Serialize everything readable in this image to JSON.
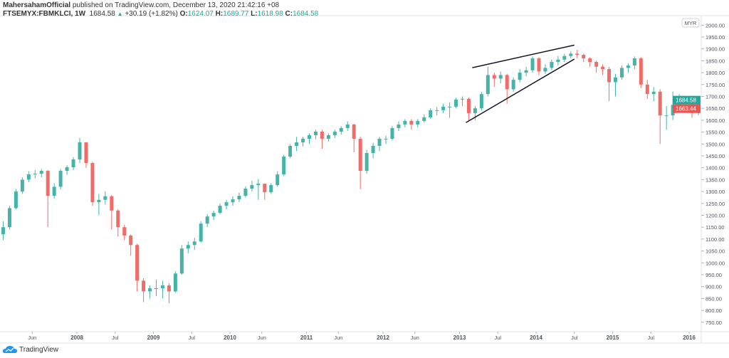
{
  "header": {
    "author": "MahersahamOfficial",
    "published_text": "published on TradingView.com, December 13, 2020 21:42:16 +08",
    "symbol": "FTSEMYX:FBMKLCI, 1W",
    "last": "1684.58",
    "change_icon": "triangle-up-icon",
    "change": "+30.19 (+1.82%)",
    "o_label": "O:",
    "o": "1624.07",
    "h_label": "H:",
    "h": "1689.77",
    "l_label": "L:",
    "l": "1618.98",
    "c_label": "C:",
    "c": "1684.58"
  },
  "footer": {
    "brand": "TradingView"
  },
  "colors": {
    "up": "#26a69a",
    "down": "#ef5350",
    "trendline": "#131722",
    "grid": "#e8eaf0"
  },
  "chart_data": {
    "type": "candlestick",
    "interval_shown": "1W",
    "currency": "MYR",
    "grid": false,
    "ylim": [
      725,
      2010
    ],
    "xlim": [
      "2007-01",
      "2016-03"
    ],
    "y_ticks": [
      "2000.00",
      "1950.00",
      "1900.00",
      "1850.00",
      "1800.00",
      "1750.00",
      "1700.00",
      "1650.00",
      "1600.00",
      "1550.00",
      "1500.00",
      "1450.00",
      "1400.00",
      "1350.00",
      "1300.00",
      "1250.00",
      "1200.00",
      "1150.00",
      "1100.00",
      "1050.00",
      "1000.00",
      "950.00",
      "900.00",
      "850.00",
      "800.00",
      "750.00"
    ],
    "x_ticks": [
      {
        "label": "Jun",
        "date": "2007-06"
      },
      {
        "label": "2008",
        "date": "2008-01"
      },
      {
        "label": "Jul",
        "date": "2008-07"
      },
      {
        "label": "2009",
        "date": "2009-01"
      },
      {
        "label": "Jul",
        "date": "2009-07"
      },
      {
        "label": "2010",
        "date": "2010-01"
      },
      {
        "label": "Jun",
        "date": "2010-06"
      },
      {
        "label": "2011",
        "date": "2011-01"
      },
      {
        "label": "Jun",
        "date": "2011-06"
      },
      {
        "label": "2012",
        "date": "2012-01"
      },
      {
        "label": "Jun",
        "date": "2012-06"
      },
      {
        "label": "2013",
        "date": "2013-01"
      },
      {
        "label": "Jul",
        "date": "2013-07"
      },
      {
        "label": "2014",
        "date": "2014-01"
      },
      {
        "label": "Jul",
        "date": "2014-07"
      },
      {
        "label": "2015",
        "date": "2015-01"
      },
      {
        "label": "Jul",
        "date": "2015-07"
      },
      {
        "label": "2016",
        "date": "2016-01"
      }
    ],
    "price_labels": [
      {
        "value": 1684.58,
        "text": "1684.58",
        "color": "#26a69a"
      },
      {
        "value": 1663.44,
        "text": "1663.44",
        "color": "#ef5350"
      }
    ],
    "currency_badge": "MYR",
    "approx_monthly": {
      "start": "2007-01",
      "first_open": 1120,
      "close": [
        1150,
        1230,
        1300,
        1350,
        1372,
        1375,
        1387,
        1282,
        1320,
        1387,
        1402,
        1435,
        1507,
        1420,
        1255,
        1265,
        1280,
        1220,
        1150,
        1115,
        1075,
        925,
        880,
        893,
        893,
        905,
        880,
        955,
        1060,
        1075,
        1090,
        1165,
        1195,
        1210,
        1240,
        1255,
        1267,
        1282,
        1312,
        1327,
        1333,
        1297,
        1327,
        1372,
        1447,
        1492,
        1507,
        1522,
        1537,
        1552,
        1522,
        1537,
        1552,
        1567,
        1582,
        1522,
        1387,
        1462,
        1492,
        1522,
        1522,
        1567,
        1582,
        1597,
        1582,
        1597,
        1612,
        1642,
        1642,
        1657,
        1657,
        1687,
        1690,
        1630,
        1650,
        1710,
        1790,
        1775,
        1790,
        1730,
        1770,
        1800,
        1810,
        1860,
        1805,
        1820,
        1845,
        1855,
        1870,
        1880,
        1875,
        1860,
        1845,
        1825,
        1815,
        1760,
        1780,
        1820,
        1830,
        1860,
        1750,
        1710,
        1720,
        1620,
        1620,
        1665,
        1670,
        1690,
        1630,
        1685
      ],
      "high": [
        1175,
        1240,
        1310,
        1360,
        1385,
        1390,
        1395,
        1390,
        1335,
        1395,
        1410,
        1445,
        1525,
        1505,
        1425,
        1290,
        1300,
        1285,
        1225,
        1160,
        1120,
        1080,
        935,
        905,
        930,
        925,
        915,
        965,
        1075,
        1090,
        1105,
        1175,
        1205,
        1220,
        1250,
        1265,
        1280,
        1295,
        1322,
        1345,
        1352,
        1320,
        1335,
        1385,
        1455,
        1500,
        1530,
        1530,
        1545,
        1560,
        1560,
        1545,
        1560,
        1575,
        1595,
        1585,
        1530,
        1475,
        1505,
        1530,
        1535,
        1575,
        1595,
        1605,
        1605,
        1605,
        1625,
        1650,
        1655,
        1670,
        1675,
        1695,
        1700,
        1695,
        1660,
        1720,
        1825,
        1800,
        1805,
        1795,
        1780,
        1815,
        1825,
        1868,
        1865,
        1835,
        1855,
        1870,
        1880,
        1890,
        1896,
        1880,
        1865,
        1850,
        1835,
        1825,
        1795,
        1830,
        1840,
        1868,
        1865,
        1770,
        1740,
        1730,
        1660,
        1720,
        1710,
        1700,
        1700,
        1690
      ],
      "low": [
        1095,
        1140,
        1225,
        1290,
        1340,
        1355,
        1360,
        1150,
        1270,
        1310,
        1370,
        1390,
        1420,
        1400,
        1240,
        1200,
        1245,
        1140,
        1110,
        1095,
        1030,
        880,
        835,
        850,
        860,
        850,
        830,
        875,
        950,
        1040,
        1055,
        1085,
        1150,
        1180,
        1205,
        1225,
        1240,
        1255,
        1275,
        1300,
        1265,
        1265,
        1290,
        1320,
        1365,
        1440,
        1470,
        1490,
        1500,
        1520,
        1480,
        1510,
        1525,
        1540,
        1555,
        1465,
        1310,
        1375,
        1440,
        1470,
        1500,
        1515,
        1555,
        1570,
        1560,
        1570,
        1590,
        1605,
        1620,
        1630,
        1610,
        1650,
        1660,
        1600,
        1600,
        1640,
        1700,
        1740,
        1755,
        1670,
        1720,
        1760,
        1785,
        1800,
        1790,
        1795,
        1810,
        1830,
        1845,
        1860,
        1860,
        1845,
        1825,
        1800,
        1790,
        1680,
        1700,
        1770,
        1800,
        1815,
        1735,
        1690,
        1680,
        1500,
        1560,
        1600,
        1640,
        1650,
        1610,
        1620
      ]
    },
    "trendlines": [
      {
        "name": "upper",
        "from": {
          "date": "2013-03",
          "price": 1821
        },
        "to": {
          "date": "2014-07",
          "price": 1916
        }
      },
      {
        "name": "lower",
        "from": {
          "date": "2013-02",
          "price": 1590
        },
        "to": {
          "date": "2014-07",
          "price": 1857
        }
      }
    ]
  }
}
